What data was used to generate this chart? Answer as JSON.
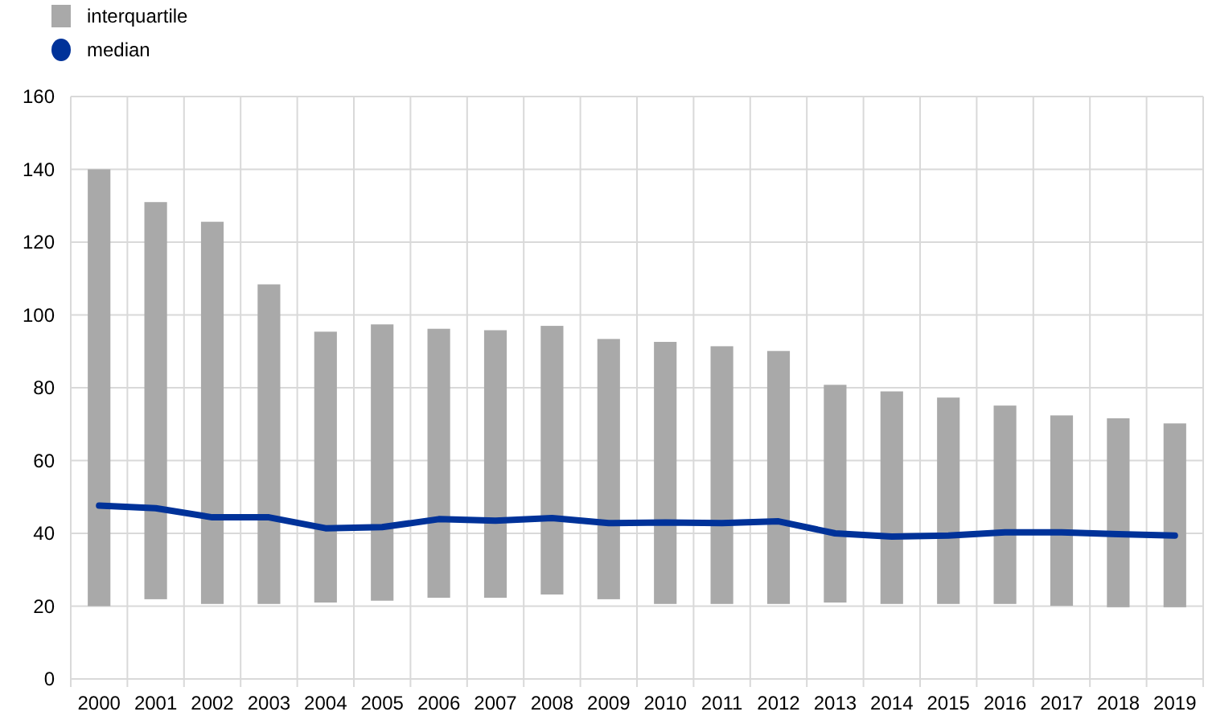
{
  "chart_data": {
    "type": "bar",
    "categories": [
      "2000",
      "2001",
      "2002",
      "2003",
      "2004",
      "2005",
      "2006",
      "2007",
      "2008",
      "2009",
      "2010",
      "2011",
      "2012",
      "2013",
      "2014",
      "2015",
      "2016",
      "2017",
      "2018",
      "2019"
    ],
    "series": [
      {
        "name": "interquartile",
        "color": "#a9a9a9",
        "base": [
          20,
          21.9,
          20.6,
          20.6,
          21,
          21.5,
          22.3,
          22.3,
          23.2,
          21.9,
          20.6,
          20.6,
          20.6,
          21,
          20.6,
          20.6,
          20.6,
          20.1,
          19.7,
          19.7
        ],
        "values": [
          120,
          109.1,
          105,
          87.8,
          74.4,
          75.9,
          73.9,
          73.5,
          73.8,
          71.5,
          72,
          70.8,
          69.5,
          59.8,
          58.4,
          56.7,
          54.5,
          52.3,
          51.9,
          50.5
        ]
      },
      {
        "name": "median",
        "type": "line",
        "color": "#003299",
        "values": [
          47.6,
          46.9,
          44.4,
          44.4,
          41.4,
          41.7,
          43.9,
          43.5,
          44.2,
          42.8,
          43,
          42.8,
          43.3,
          40,
          39.1,
          39.4,
          40.3,
          40.3,
          39.8,
          39.4
        ]
      }
    ],
    "ylim": [
      0,
      160
    ],
    "yticks": [
      0,
      20,
      40,
      60,
      80,
      100,
      120,
      140,
      160
    ],
    "grid": true,
    "legend": "top left",
    "marker": "none",
    "line_style": "solid"
  }
}
